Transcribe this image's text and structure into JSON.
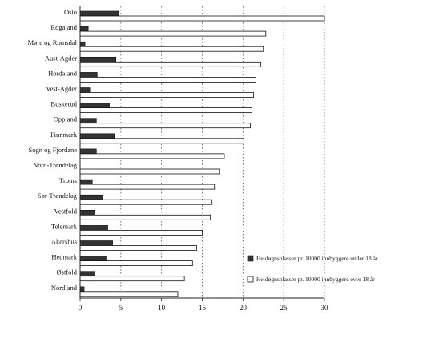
{
  "chart_data": {
    "type": "bar",
    "orientation": "horizontal",
    "categories": [
      "Oslo",
      "Rogaland",
      "Møre og Romsdal",
      "Aust-Agder",
      "Hordaland",
      "Vest-Agder",
      "Buskerud",
      "Oppland",
      "Finnmark",
      "Sogn og Fjordane",
      "Nord-Trøndelag",
      "Troms",
      "Sør-Trøndelag",
      "Vestfold",
      "Telemark",
      "Akershus",
      "Hedmark",
      "Østfold",
      "Nordland"
    ],
    "series": [
      {
        "name": "Heldøgnsplasser pr. 10000 innbyggere under 18 år",
        "color": "#333333",
        "values": [
          4.7,
          1.0,
          0.6,
          4.4,
          2.1,
          1.2,
          3.6,
          2.0,
          4.2,
          2.0,
          0.0,
          1.5,
          2.8,
          1.8,
          3.4,
          4.0,
          3.2,
          1.8,
          0.5
        ],
        "data_labels": [
          "",
          "",
          "",
          "",
          "",
          "",
          "",
          "",
          "",
          "",
          "",
          "",
          "",
          "",
          "",
          "",
          "",
          "",
          ""
        ]
      },
      {
        "name": "Heldøgnsplasser pr. 10000 innbyggere over 18 år",
        "color": "#ffffff",
        "values": [
          30.0,
          22.8,
          22.5,
          22.2,
          21.6,
          21.3,
          21.1,
          20.9,
          20.1,
          17.7,
          17.1,
          16.5,
          16.2,
          16.0,
          15.0,
          14.3,
          13.8,
          12.8,
          12.0
        ]
      }
    ],
    "xlim": [
      0,
      30
    ],
    "xticks": [
      "0",
      "5",
      "10",
      "15",
      "20",
      "25",
      "30"
    ],
    "grid": "vertical dotted",
    "legend_position": "lower-right",
    "title": "",
    "xlabel": "",
    "ylabel": ""
  }
}
